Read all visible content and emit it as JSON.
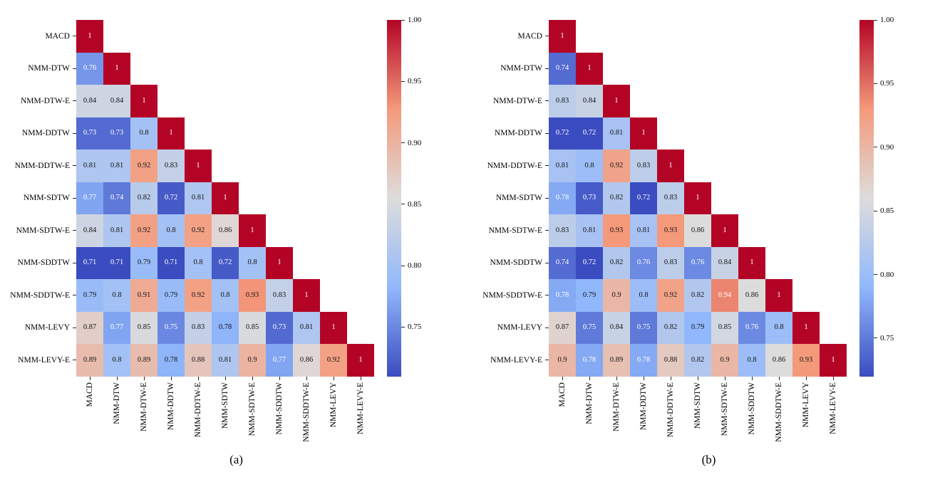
{
  "captions": [
    "(a)",
    "(b)"
  ],
  "chart_data": [
    {
      "type": "heatmap",
      "shape": "lower-triangular",
      "annotated": true,
      "colormap": "coolwarm",
      "colormap_anchors": [
        "#3B4CC0",
        "#91B8FC",
        "#DDDCDC",
        "#F49A7B",
        "#B40426"
      ],
      "labels": [
        "MACD",
        "NMM-DTW",
        "NMM-DTW-E",
        "NMM-DDTW",
        "NMM-DDTW-E",
        "NMM-SDTW",
        "NMM-SDTW-E",
        "NMM-SDDTW",
        "NMM-SDDTW-E",
        "NMM-LEVY",
        "NMM-LEVY-E"
      ],
      "matrix": [
        [
          1
        ],
        [
          0.76,
          1
        ],
        [
          0.84,
          0.84,
          1
        ],
        [
          0.73,
          0.73,
          0.8,
          1
        ],
        [
          0.81,
          0.81,
          0.92,
          0.83,
          1
        ],
        [
          0.77,
          0.74,
          0.82,
          0.72,
          0.81,
          1
        ],
        [
          0.84,
          0.81,
          0.92,
          0.8,
          0.92,
          0.86,
          1
        ],
        [
          0.71,
          0.71,
          0.79,
          0.71,
          0.8,
          0.72,
          0.8,
          1
        ],
        [
          0.79,
          0.8,
          0.91,
          0.79,
          0.92,
          0.8,
          0.93,
          0.83,
          1
        ],
        [
          0.87,
          0.77,
          0.85,
          0.75,
          0.83,
          0.78,
          0.85,
          0.73,
          0.81,
          1
        ],
        [
          0.89,
          0.8,
          0.89,
          0.78,
          0.88,
          0.81,
          0.9,
          0.77,
          0.86,
          0.92,
          1
        ]
      ],
      "vmin": 0.71,
      "vmax": 1.0,
      "colorbar_tick_values": [
        1.0,
        0.95,
        0.9,
        0.85,
        0.8,
        0.75
      ],
      "colorbar_tick_labels": [
        "1.00",
        "0.95",
        "0.90",
        "0.85",
        "0.80",
        "0.75"
      ]
    },
    {
      "type": "heatmap",
      "shape": "lower-triangular",
      "annotated": true,
      "colormap": "coolwarm",
      "colormap_anchors": [
        "#3B4CC0",
        "#91B8FC",
        "#DDDCDC",
        "#F49A7B",
        "#B40426"
      ],
      "labels": [
        "MACD",
        "NMM-DTW",
        "NMM-DTW-E",
        "NMM-DDTW",
        "NMM-DDTW-E",
        "NMM-SDTW",
        "NMM-SDTW-E",
        "NMM-SDDTW",
        "NMM-SDDTW-E",
        "NMM-LEVY",
        "NMM-LEVY-E"
      ],
      "matrix": [
        [
          1
        ],
        [
          0.74,
          1
        ],
        [
          0.83,
          0.84,
          1
        ],
        [
          0.72,
          0.72,
          0.81,
          1
        ],
        [
          0.81,
          0.8,
          0.92,
          0.83,
          1
        ],
        [
          0.78,
          0.73,
          0.82,
          0.72,
          0.83,
          1
        ],
        [
          0.83,
          0.81,
          0.93,
          0.81,
          0.93,
          0.86,
          1
        ],
        [
          0.74,
          0.72,
          0.82,
          0.76,
          0.83,
          0.76,
          0.84,
          1
        ],
        [
          0.78,
          0.79,
          0.9,
          0.8,
          0.92,
          0.82,
          0.94,
          0.86,
          1
        ],
        [
          0.87,
          0.75,
          0.84,
          0.75,
          0.82,
          0.79,
          0.85,
          0.76,
          0.8,
          1
        ],
        [
          0.9,
          0.78,
          0.89,
          0.78,
          0.88,
          0.82,
          0.9,
          0.8,
          0.86,
          0.93,
          1
        ]
      ],
      "vmin": 0.72,
      "vmax": 1.0,
      "colorbar_tick_values": [
        1.0,
        0.95,
        0.9,
        0.85,
        0.8,
        0.75
      ],
      "colorbar_tick_labels": [
        "1.00",
        "0.95",
        "0.90",
        "0.85",
        "0.80",
        "0.75"
      ]
    }
  ]
}
